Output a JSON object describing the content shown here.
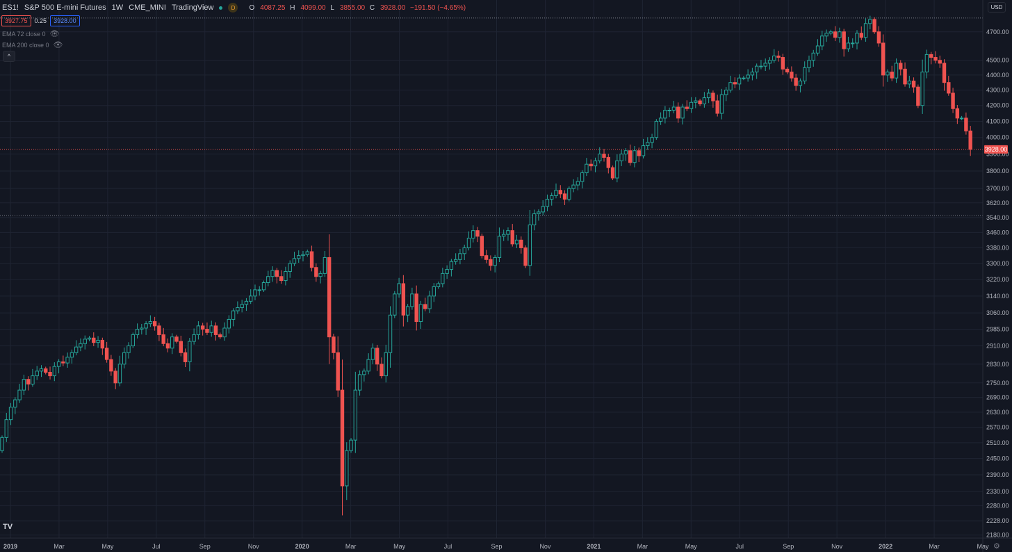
{
  "header": {
    "symbol": "ES1!",
    "name": "S&P 500 E-mini Futures",
    "interval": "1W",
    "exchange": "CME_MINI",
    "source": "TradingView",
    "status_icon": "D",
    "ohlc": {
      "o_label": "O",
      "o": "4087.25",
      "h_label": "H",
      "h": "4099.00",
      "l_label": "L",
      "l": "3855.00",
      "c_label": "C",
      "c": "3928.00",
      "change": "−191.50 (−4.65%)"
    }
  },
  "bidask": {
    "bid": "3927.75",
    "spread": "0.25",
    "ask": "3928.00"
  },
  "indicators": [
    {
      "label": "EMA 72 close 0",
      "icon": "eye-off-icon"
    },
    {
      "label": "EMA 200 close 0",
      "icon": "eye-off-icon"
    }
  ],
  "toolbar": {
    "collapse_label": "^",
    "currency": "USD"
  },
  "colors": {
    "background": "#131722",
    "up": "#26a69a",
    "down": "#ef5350",
    "grid": "#1f2433",
    "text": "#b2b5be"
  },
  "current_price_label": "3928.00",
  "chart_data": {
    "type": "candlestick",
    "symbol": "ES1!",
    "interval": "1W",
    "x_ticks": [
      "2019",
      "Mar",
      "May",
      "Jul",
      "Sep",
      "Nov",
      "2020",
      "Mar",
      "May",
      "Jul",
      "Sep",
      "Nov",
      "2021",
      "Mar",
      "May",
      "Jul",
      "Sep",
      "Nov",
      "2022",
      "Mar",
      "May"
    ],
    "y_ticks": [
      2180,
      2228,
      2280,
      2330,
      2390,
      2450,
      2510,
      2570,
      2630,
      2690,
      2750,
      2830,
      2910,
      2985,
      3060,
      3140,
      3220,
      3300,
      3380,
      3460,
      3540,
      3620,
      3700,
      3800,
      3900,
      4000,
      4100,
      4200,
      4300,
      4400,
      4500,
      4700
    ],
    "y_scale": "log",
    "ylim": [
      2170,
      4820
    ],
    "current_price": 3928.0,
    "reference_lines": [
      4800,
      3550
    ],
    "closes": [
      2530,
      2600,
      2650,
      2680,
      2720,
      2765,
      2745,
      2780,
      2800,
      2810,
      2795,
      2780,
      2820,
      2840,
      2835,
      2860,
      2880,
      2905,
      2920,
      2940,
      2945,
      2925,
      2935,
      2900,
      2850,
      2800,
      2750,
      2830,
      2880,
      2910,
      2960,
      2985,
      2990,
      3010,
      3020,
      3000,
      2960,
      2920,
      2900,
      2950,
      2930,
      2880,
      2840,
      2930,
      2960,
      3000,
      2985,
      2970,
      3000,
      2960,
      2950,
      2990,
      3030,
      3070,
      3085,
      3100,
      3115,
      3140,
      3170,
      3170,
      3205,
      3235,
      3265,
      3235,
      3215,
      3260,
      3300,
      3325,
      3340,
      3345,
      3360,
      3280,
      3235,
      3250,
      3330,
      2950,
      2880,
      2720,
      2350,
      2480,
      2520,
      2720,
      2785,
      2800,
      2850,
      2900,
      2830,
      2780,
      2880,
      3050,
      3150,
      3200,
      3050,
      3090,
      3150,
      3020,
      3100,
      3080,
      3140,
      3185,
      3200,
      3250,
      3270,
      3310,
      3320,
      3350,
      3380,
      3430,
      3470,
      3440,
      3340,
      3320,
      3290,
      3330,
      3440,
      3450,
      3470,
      3400,
      3420,
      3380,
      3290,
      3500,
      3560,
      3570,
      3600,
      3640,
      3660,
      3690,
      3670,
      3640,
      3700,
      3720,
      3740,
      3790,
      3840,
      3830,
      3860,
      3900,
      3880,
      3820,
      3760,
      3860,
      3900,
      3920,
      3850,
      3920,
      3890,
      3950,
      3970,
      4000,
      4100,
      4120,
      4170,
      4170,
      4190,
      4120,
      4190,
      4180,
      4220,
      4230,
      4210,
      4250,
      4280,
      4230,
      4150,
      4270,
      4300,
      4350,
      4340,
      4380,
      4380,
      4400,
      4420,
      4460,
      4460,
      4480,
      4500,
      4530,
      4520,
      4440,
      4420,
      4380,
      4330,
      4360,
      4450,
      4500,
      4550,
      4600,
      4670,
      4690,
      4700,
      4660,
      4700,
      4580,
      4620,
      4620,
      4690,
      4660,
      4760,
      4790,
      4700,
      4620,
      4400,
      4420,
      4380,
      4480,
      4440,
      4340,
      4360,
      4320,
      4200,
      4420,
      4540,
      4520,
      4500,
      4480,
      4350,
      4280,
      4180,
      4120,
      4120,
      4040,
      3928
    ],
    "title": "S&P 500 E-mini Futures"
  }
}
